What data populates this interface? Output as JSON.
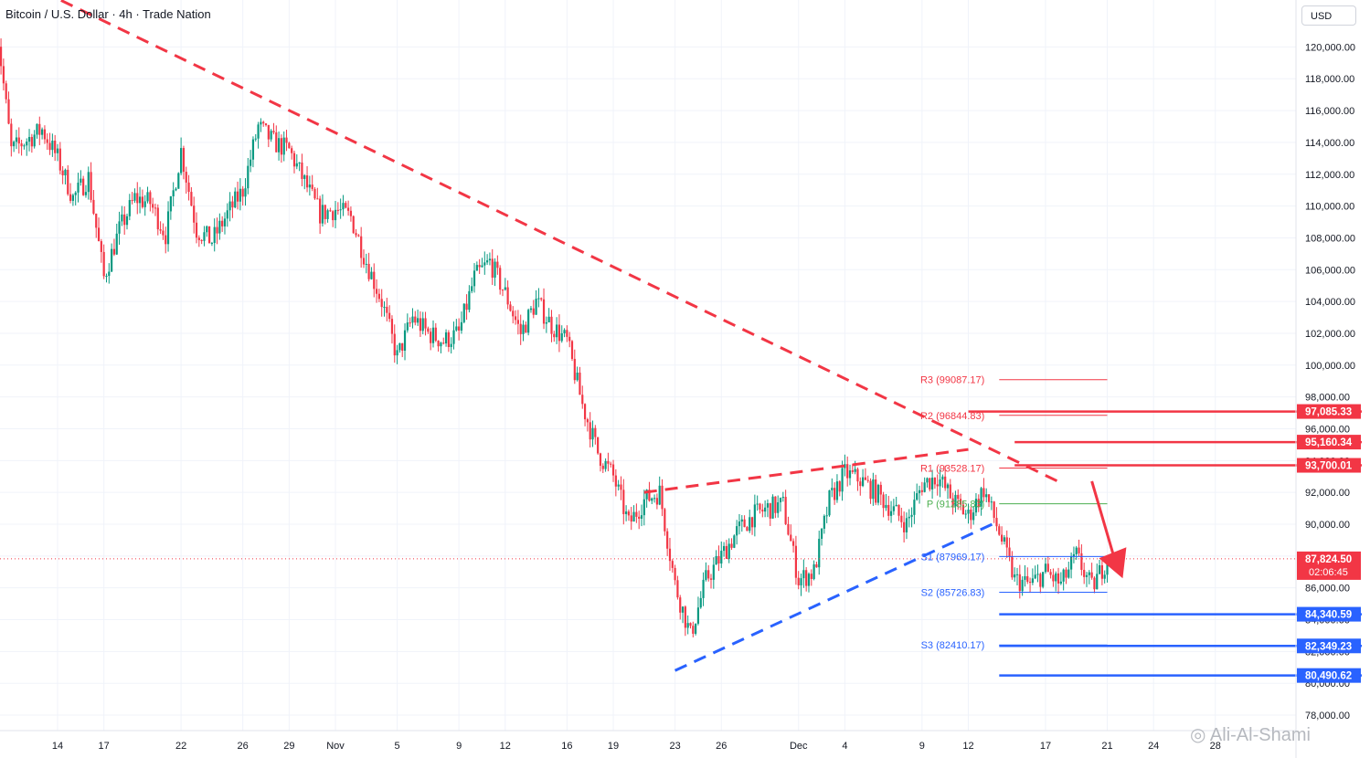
{
  "header": {
    "title": "Bitcoin / U.S. Dollar · 4h · Trade Nation"
  },
  "currency_button": "USD",
  "watermark": "Ali-Al-Shami",
  "colors": {
    "up": "#089981",
    "down": "#f23645",
    "resistance": "#f23645",
    "support": "#2962ff",
    "pivot": "#4caf50",
    "grid": "#f0f3fa"
  },
  "chart_data": {
    "type": "candlestick",
    "ylim": [
      76500,
      123500
    ],
    "y_ticks": [
      78000,
      80000,
      82000,
      84000,
      86000,
      88000,
      90000,
      92000,
      94000,
      96000,
      98000,
      100000,
      102000,
      104000,
      106000,
      108000,
      110000,
      112000,
      114000,
      116000,
      118000,
      120000
    ],
    "x_ticks": [
      {
        "date": "2025-10-14",
        "label": "14"
      },
      {
        "date": "2025-10-17",
        "label": "17"
      },
      {
        "date": "2025-10-22",
        "label": "22"
      },
      {
        "date": "2025-10-26",
        "label": "26"
      },
      {
        "date": "2025-10-29",
        "label": "29"
      },
      {
        "date": "2025-11-01",
        "label": "Nov"
      },
      {
        "date": "2025-11-05",
        "label": "5"
      },
      {
        "date": "2025-11-09",
        "label": "9"
      },
      {
        "date": "2025-11-12",
        "label": "12"
      },
      {
        "date": "2025-11-16",
        "label": "16"
      },
      {
        "date": "2025-11-19",
        "label": "19"
      },
      {
        "date": "2025-11-23",
        "label": "23"
      },
      {
        "date": "2025-11-26",
        "label": "26"
      },
      {
        "date": "2025-12-01",
        "label": "Dec"
      },
      {
        "date": "2025-12-04",
        "label": "4"
      },
      {
        "date": "2025-12-09",
        "label": "9"
      },
      {
        "date": "2025-12-12",
        "label": "12"
      },
      {
        "date": "2025-12-17",
        "label": "17"
      },
      {
        "date": "2025-12-21",
        "label": "21"
      },
      {
        "date": "2025-12-24",
        "label": "24"
      },
      {
        "date": "2025-12-28",
        "label": "28"
      }
    ],
    "price_path": [
      [
        "2025-10-10",
        121800
      ],
      [
        "2025-10-11",
        113500
      ],
      [
        "2025-10-13",
        114800
      ],
      [
        "2025-10-14",
        113000
      ],
      [
        "2025-10-15",
        110500
      ],
      [
        "2025-10-16",
        111800
      ],
      [
        "2025-10-17",
        105500
      ],
      [
        "2025-10-18",
        108500
      ],
      [
        "2025-10-19",
        110500
      ],
      [
        "2025-10-20",
        110200
      ],
      [
        "2025-10-21",
        108200
      ],
      [
        "2025-10-22",
        113500
      ],
      [
        "2025-10-23",
        108500
      ],
      [
        "2025-10-24",
        107800
      ],
      [
        "2025-10-25",
        109500
      ],
      [
        "2025-10-26",
        111000
      ],
      [
        "2025-10-27",
        115000
      ],
      [
        "2025-10-28",
        114000
      ],
      [
        "2025-10-29",
        113500
      ],
      [
        "2025-10-30",
        111500
      ],
      [
        "2025-10-31",
        109500
      ],
      [
        "2025-11-01",
        109800
      ],
      [
        "2025-11-02",
        109300
      ],
      [
        "2025-11-03",
        106500
      ],
      [
        "2025-11-04",
        104000
      ],
      [
        "2025-11-05",
        100500
      ],
      [
        "2025-11-06",
        103000
      ],
      [
        "2025-11-07",
        102000
      ],
      [
        "2025-11-08",
        101500
      ],
      [
        "2025-11-09",
        102000
      ],
      [
        "2025-11-10",
        105500
      ],
      [
        "2025-11-11",
        106500
      ],
      [
        "2025-11-12",
        104500
      ],
      [
        "2025-11-13",
        102000
      ],
      [
        "2025-11-14",
        104000
      ],
      [
        "2025-11-15",
        102500
      ],
      [
        "2025-11-16",
        101500
      ],
      [
        "2025-11-17",
        97500
      ],
      [
        "2025-11-18",
        94500
      ],
      [
        "2025-11-19",
        93000
      ],
      [
        "2025-11-20",
        90000
      ],
      [
        "2025-11-21",
        91500
      ],
      [
        "2025-11-22",
        92000
      ],
      [
        "2025-11-23",
        86200
      ],
      [
        "2025-11-24",
        83000
      ],
      [
        "2025-11-25",
        86500
      ],
      [
        "2025-11-26",
        88000
      ],
      [
        "2025-11-27",
        89500
      ],
      [
        "2025-11-28",
        90500
      ],
      [
        "2025-11-29",
        91000
      ],
      [
        "2025-11-30",
        91200
      ],
      [
        "2025-12-01",
        86500
      ],
      [
        "2025-12-02",
        87000
      ],
      [
        "2025-12-03",
        91500
      ],
      [
        "2025-12-04",
        93200
      ],
      [
        "2025-12-05",
        92800
      ],
      [
        "2025-12-06",
        92000
      ],
      [
        "2025-12-07",
        91000
      ],
      [
        "2025-12-08",
        90000
      ],
      [
        "2025-12-09",
        92500
      ],
      [
        "2025-12-10",
        93000
      ],
      [
        "2025-12-11",
        91500
      ],
      [
        "2025-12-12",
        90500
      ],
      [
        "2025-12-13",
        92200
      ],
      [
        "2025-12-14",
        89500
      ],
      [
        "2025-12-15",
        86500
      ],
      [
        "2025-12-16",
        86200
      ],
      [
        "2025-12-17",
        87000
      ],
      [
        "2025-12-18",
        86200
      ],
      [
        "2025-12-19",
        88000
      ],
      [
        "2025-12-20",
        86000
      ],
      [
        "2025-12-21",
        87824.5
      ]
    ],
    "last_price": {
      "value": 87824.5,
      "label": "87,824.50",
      "countdown": "02:06:45"
    },
    "price_badges": [
      {
        "value": 97085.33,
        "label": "97,085.33",
        "kind": "resistance"
      },
      {
        "value": 95160.34,
        "label": "95,160.34",
        "kind": "resistance"
      },
      {
        "value": 93700.01,
        "label": "93,700.01",
        "kind": "resistance"
      },
      {
        "value": 84340.59,
        "label": "84,340.59",
        "kind": "support"
      },
      {
        "value": 82349.23,
        "label": "82,349.23",
        "kind": "support"
      },
      {
        "value": 80490.62,
        "label": "80,490.62",
        "kind": "support"
      }
    ],
    "horizontal_levels": [
      {
        "value": 97085.33,
        "from": "2025-12-12",
        "kind": "resistance"
      },
      {
        "value": 95160.34,
        "from": "2025-12-15",
        "kind": "resistance"
      },
      {
        "value": 93700.01,
        "from": "2025-12-15",
        "kind": "resistance"
      },
      {
        "value": 84340.59,
        "from": "2025-12-14",
        "kind": "support"
      },
      {
        "value": 82349.23,
        "from": "2025-12-14",
        "kind": "support"
      },
      {
        "value": 80490.62,
        "from": "2025-12-14",
        "kind": "support"
      }
    ],
    "pivot_levels": [
      {
        "name": "R3",
        "value": 99087.17,
        "label": "R3 (99087.17)",
        "kind": "resistance"
      },
      {
        "name": "R2",
        "value": 96844.83,
        "label": "R2 (96844.83)",
        "kind": "resistance"
      },
      {
        "name": "R1",
        "value": 93528.17,
        "label": "R1 (93528.17)",
        "kind": "resistance"
      },
      {
        "name": "P",
        "value": 91285.83,
        "label": "P (91285.83)",
        "kind": "pivot"
      },
      {
        "name": "S1",
        "value": 87969.17,
        "label": "S1 (87969.17)",
        "kind": "support"
      },
      {
        "name": "S2",
        "value": 85726.83,
        "label": "S2 (85726.83)",
        "kind": "support"
      },
      {
        "name": "S3",
        "value": 82410.17,
        "label": "S3 (82410.17)",
        "kind": "support"
      }
    ],
    "trendlines": [
      {
        "kind": "resistance",
        "points": [
          [
            "2025-10-13",
            123500
          ],
          [
            "2025-12-18",
            92600
          ]
        ]
      },
      {
        "kind": "resistance",
        "points": [
          [
            "2025-11-21",
            92000
          ],
          [
            "2025-12-12",
            94700
          ]
        ]
      },
      {
        "kind": "support",
        "points": [
          [
            "2025-11-23",
            80800
          ],
          [
            "2025-12-14",
            90200
          ]
        ]
      }
    ],
    "forecast_arrow": {
      "from": [
        "2025-12-20",
        92700
      ],
      "to": [
        "2025-12-22",
        86600
      ],
      "kind": "resistance"
    }
  }
}
